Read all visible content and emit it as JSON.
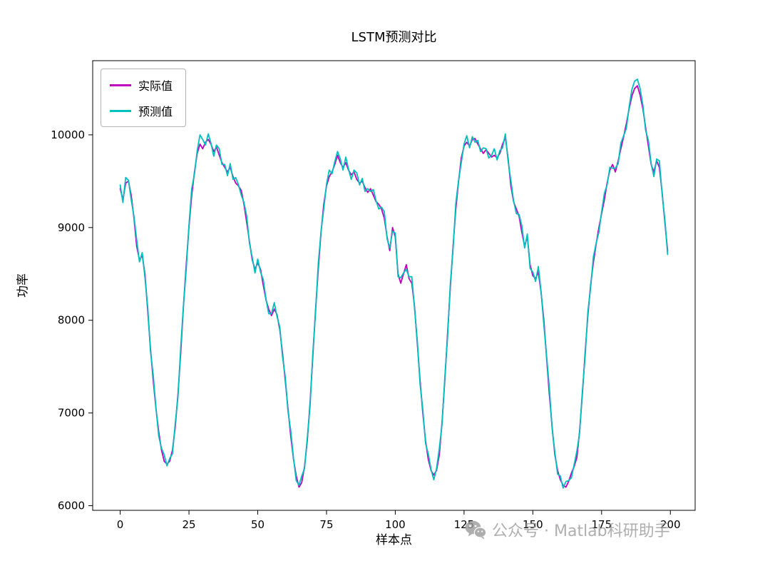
{
  "page": {
    "background": "#ffffff"
  },
  "watermark": {
    "text": "公众号 · Matlab科研助手",
    "color": "#9b9b9b"
  },
  "chart_data": {
    "type": "line",
    "title": "LSTM预测对比",
    "xlabel": "样本点",
    "ylabel": "功率",
    "xlim": [
      -10,
      209
    ],
    "ylim": [
      5950,
      10800
    ],
    "xticks": [
      0,
      25,
      50,
      75,
      100,
      125,
      150,
      175,
      200
    ],
    "yticks": [
      6000,
      7000,
      8000,
      9000,
      10000
    ],
    "grid": false,
    "legend_position": "upper-left",
    "x_start": 0,
    "x_step": 1,
    "series": [
      {
        "name": "实际值",
        "color": "#BF00BF",
        "values": [
          9420,
          9300,
          9480,
          9500,
          9350,
          9100,
          8800,
          8650,
          8700,
          8500,
          8100,
          7700,
          7350,
          7050,
          6800,
          6600,
          6480,
          6450,
          6480,
          6600,
          6850,
          7200,
          7650,
          8150,
          8600,
          9000,
          9350,
          9600,
          9800,
          9900,
          9850,
          9920,
          9950,
          9900,
          9820,
          9870,
          9780,
          9700,
          9650,
          9600,
          9650,
          9550,
          9480,
          9450,
          9400,
          9250,
          9050,
          8850,
          8650,
          8550,
          8620,
          8550,
          8380,
          8220,
          8120,
          8050,
          8120,
          8060,
          7900,
          7650,
          7350,
          7050,
          6750,
          6500,
          6320,
          6200,
          6250,
          6420,
          6700,
          7100,
          7600,
          8100,
          8550,
          8950,
          9250,
          9450,
          9550,
          9600,
          9680,
          9780,
          9700,
          9650,
          9700,
          9620,
          9570,
          9600,
          9520,
          9480,
          9500,
          9430,
          9380,
          9420,
          9350,
          9280,
          9250,
          9200,
          9100,
          8900,
          8750,
          9000,
          8900,
          8500,
          8400,
          8500,
          8600,
          8450,
          8400,
          8150,
          7750,
          7350,
          7000,
          6700,
          6500,
          6380,
          6330,
          6380,
          6550,
          6900,
          7350,
          7850,
          8350,
          8800,
          9200,
          9500,
          9750,
          9880,
          9920,
          9880,
          9950,
          9960,
          9900,
          9850,
          9800,
          9840,
          9800,
          9760,
          9780,
          9750,
          9800,
          9900,
          9970,
          9750,
          9450,
          9280,
          9200,
          9120,
          8950,
          8800,
          8900,
          8600,
          8480,
          8450,
          8520,
          8300,
          8000,
          7600,
          7200,
          6850,
          6550,
          6380,
          6280,
          6220,
          6200,
          6260,
          6350,
          6420,
          6520,
          6800,
          7200,
          7650,
          8050,
          8380,
          8620,
          8820,
          9000,
          9150,
          9300,
          9480,
          9620,
          9680,
          9600,
          9720,
          9850,
          9980,
          10120,
          10280,
          10420,
          10500,
          10530,
          10430,
          10280,
          10080,
          9880,
          9680,
          9600,
          9720,
          9650,
          9380,
          9050,
          8750
        ]
      },
      {
        "name": "预测值",
        "color": "#00BFBF",
        "values": [
          9460,
          9270,
          9540,
          9510,
          9300,
          9120,
          8870,
          8630,
          8730,
          8460,
          8140,
          7670,
          7410,
          7060,
          6750,
          6620,
          6550,
          6430,
          6510,
          6560,
          6890,
          7170,
          7710,
          8160,
          8550,
          9020,
          9420,
          9580,
          9830,
          10000,
          9950,
          9890,
          10010,
          9910,
          9770,
          9890,
          9850,
          9680,
          9680,
          9560,
          9690,
          9520,
          9540,
          9460,
          9350,
          9270,
          9120,
          8830,
          8680,
          8510,
          8660,
          8520,
          8440,
          8230,
          8070,
          8070,
          8190,
          8040,
          7930,
          7610,
          7390,
          7020,
          6810,
          6510,
          6270,
          6220,
          6320,
          6400,
          6730,
          7060,
          7640,
          8070,
          8610,
          8960,
          9200,
          9470,
          9620,
          9580,
          9710,
          9820,
          9740,
          9620,
          9760,
          9630,
          9520,
          9620,
          9590,
          9460,
          9530,
          9390,
          9420,
          9390,
          9410,
          9290,
          9200,
          9220,
          9170,
          8880,
          8780,
          8960,
          8940,
          8470,
          8460,
          8510,
          8550,
          8470,
          8470,
          8130,
          7780,
          7310,
          7040,
          6670,
          6560,
          6390,
          6280,
          6400,
          6620,
          6880,
          7380,
          7810,
          8390,
          8770,
          9260,
          9510,
          9700,
          9900,
          9990,
          9860,
          9980,
          9920,
          9940,
          9820,
          9860,
          9850,
          9750,
          9780,
          9850,
          9730,
          9830,
          9860,
          10010,
          9720,
          9510,
          9290,
          9150,
          9140,
          9020,
          8780,
          8930,
          8560,
          8520,
          8420,
          8580,
          8310,
          7950,
          7620,
          7270,
          6830,
          6580,
          6340,
          6320,
          6190,
          6260,
          6270,
          6300,
          6440,
          6590,
          6780,
          7230,
          7610,
          8090,
          8350,
          8680,
          8830,
          8950,
          9170,
          9370,
          9460,
          9650,
          9640,
          9640,
          9690,
          9910,
          9990,
          10070,
          10300,
          10490,
          10580,
          10600,
          10500,
          10320,
          10050,
          9940,
          9690,
          9550,
          9740,
          9720,
          9360,
          9080,
          8710
        ]
      }
    ]
  }
}
